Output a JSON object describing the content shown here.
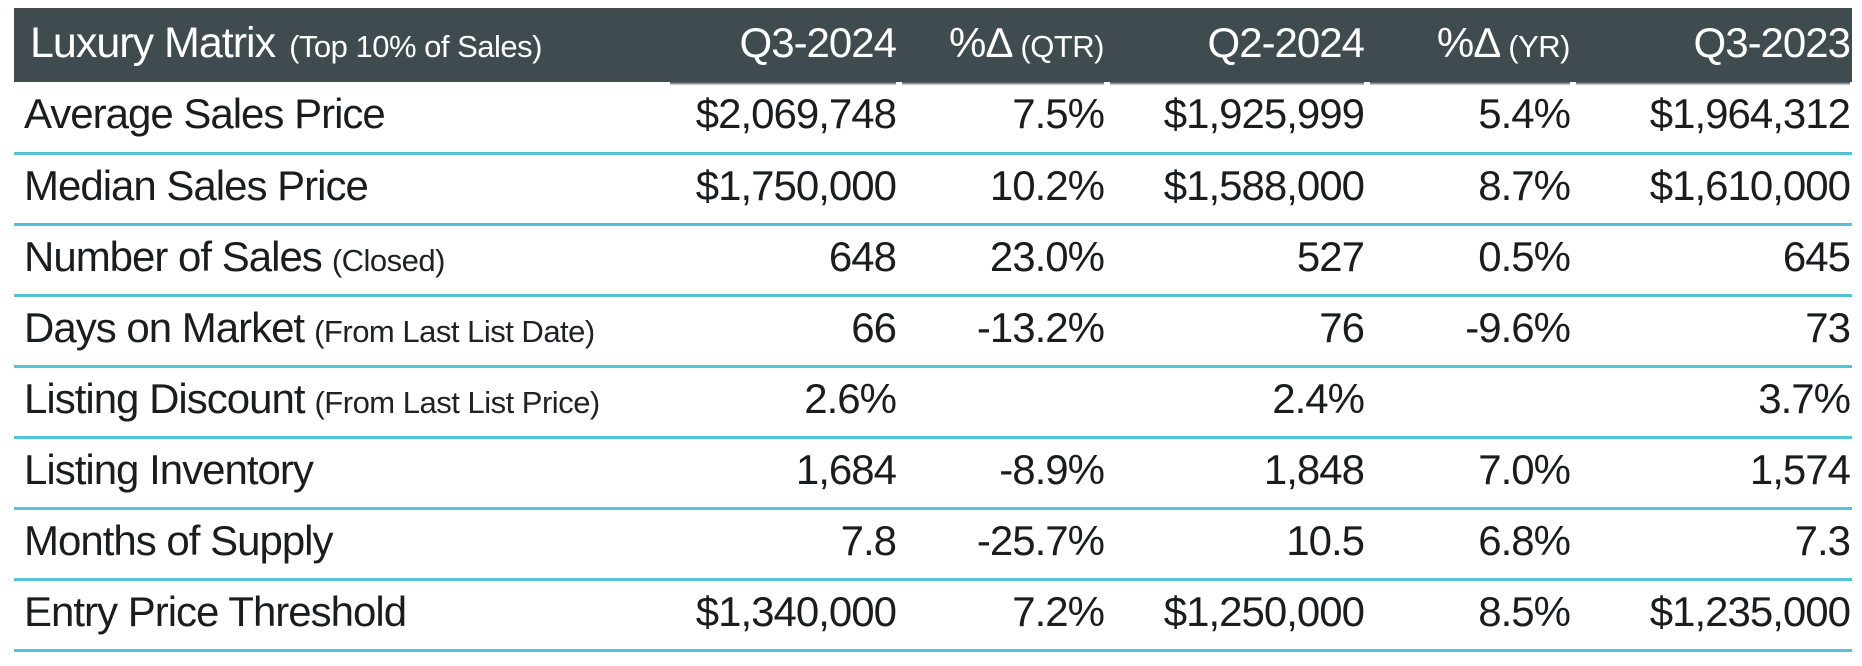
{
  "table": {
    "title": "Luxury Matrix",
    "title_note": "(Top 10% of Sales)",
    "columns": [
      {
        "label": "Q3-2024",
        "sub": ""
      },
      {
        "label": "%Δ",
        "sub": "(QTR)"
      },
      {
        "label": "Q2-2024",
        "sub": ""
      },
      {
        "label": "%Δ",
        "sub": "(YR)"
      },
      {
        "label": "Q3-2023",
        "sub": ""
      }
    ],
    "rows": [
      {
        "label": "Average Sales Price",
        "note": "",
        "values": [
          "$2,069,748",
          "7.5%",
          "$1,925,999",
          "5.4%",
          "$1,964,312"
        ]
      },
      {
        "label": "Median Sales Price",
        "note": "",
        "values": [
          "$1,750,000",
          "10.2%",
          "$1,588,000",
          "8.7%",
          "$1,610,000"
        ]
      },
      {
        "label": "Number of Sales",
        "note": "(Closed)",
        "values": [
          "648",
          "23.0%",
          "527",
          "0.5%",
          "645"
        ]
      },
      {
        "label": "Days on Market",
        "note": "(From Last List Date)",
        "values": [
          "66",
          "-13.2%",
          "76",
          "-9.6%",
          "73"
        ]
      },
      {
        "label": "Listing Discount",
        "note": "(From Last List Price)",
        "values": [
          "2.6%",
          "",
          "2.4%",
          "",
          "3.7%"
        ]
      },
      {
        "label": "Listing Inventory",
        "note": "",
        "values": [
          "1,684",
          "-8.9%",
          "1,848",
          "7.0%",
          "1,574"
        ]
      },
      {
        "label": "Months of Supply",
        "note": "",
        "values": [
          "7.8",
          "-25.7%",
          "10.5",
          "6.8%",
          "7.3"
        ]
      },
      {
        "label": "Entry Price Threshold",
        "note": "",
        "values": [
          "$1,340,000",
          "7.2%",
          "$1,250,000",
          "8.5%",
          "$1,235,000"
        ]
      }
    ]
  },
  "colors": {
    "header_bg": "#3F4B4F",
    "header_text": "#FFFFFF",
    "separator": "#53C3D5",
    "text": "#1B1C1E"
  },
  "chart_data": {
    "type": "table",
    "title": "Luxury Matrix (Top 10% of Sales)",
    "columns": [
      "Metric",
      "Q3-2024",
      "%Δ (QTR)",
      "Q2-2024",
      "%Δ (YR)",
      "Q3-2023"
    ],
    "rows": [
      [
        "Average Sales Price",
        "$2,069,748",
        "7.5%",
        "$1,925,999",
        "5.4%",
        "$1,964,312"
      ],
      [
        "Median Sales Price",
        "$1,750,000",
        "10.2%",
        "$1,588,000",
        "8.7%",
        "$1,610,000"
      ],
      [
        "Number of Sales (Closed)",
        "648",
        "23.0%",
        "527",
        "0.5%",
        "645"
      ],
      [
        "Days on Market (From Last List Date)",
        "66",
        "-13.2%",
        "76",
        "-9.6%",
        "73"
      ],
      [
        "Listing Discount (From Last List Price)",
        "2.6%",
        "",
        "2.4%",
        "",
        "3.7%"
      ],
      [
        "Listing Inventory",
        "1,684",
        "-8.9%",
        "1,848",
        "7.0%",
        "1,574"
      ],
      [
        "Months of Supply",
        "7.8",
        "-25.7%",
        "10.5",
        "6.8%",
        "7.3"
      ],
      [
        "Entry Price Threshold",
        "$1,340,000",
        "7.2%",
        "$1,250,000",
        "8.5%",
        "$1,235,000"
      ]
    ]
  }
}
